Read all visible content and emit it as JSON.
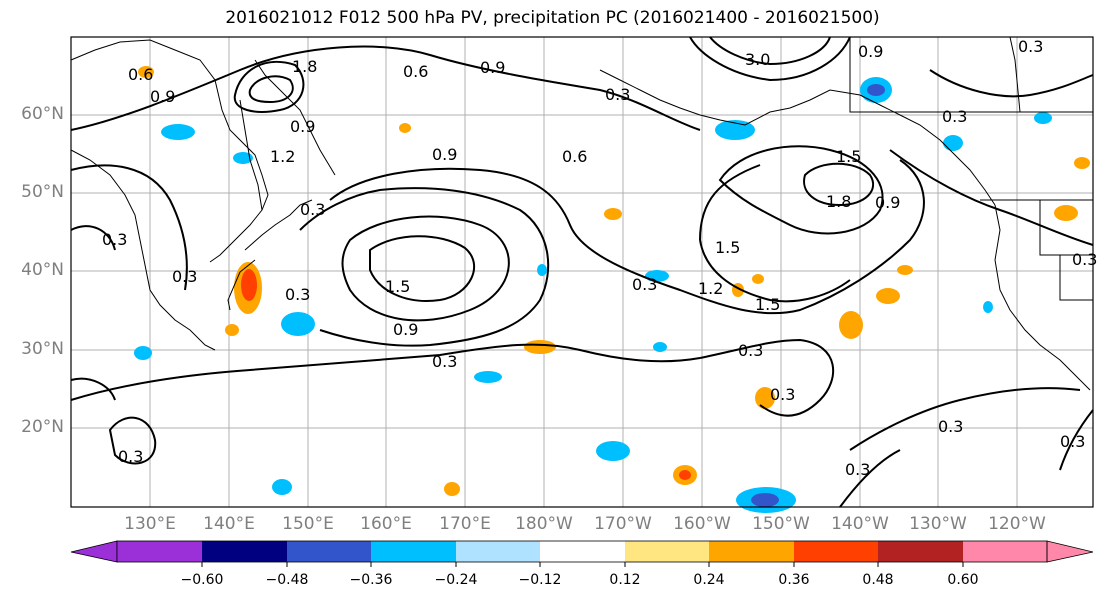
{
  "title": "2016021012 F012 500 hPa PV, precipitation PC (2016021400 - 2016021500)",
  "lat_labels": [
    "60°N",
    "50°N",
    "40°N",
    "30°N",
    "20°N"
  ],
  "lon_labels": [
    "130°E",
    "140°E",
    "150°E",
    "160°E",
    "170°E",
    "180°W",
    "170°W",
    "160°W",
    "150°W",
    "140°W",
    "130°W",
    "120°W"
  ],
  "colorbar": {
    "ticks": [
      "−0.60",
      "−0.48",
      "−0.36",
      "−0.24",
      "−0.12",
      "0.12",
      "0.24",
      "0.36",
      "0.48",
      "0.60"
    ],
    "colors": [
      "#9b30d9",
      "#000080",
      "#3355cc",
      "#00bfff",
      "#aee2ff",
      "#ffffff",
      "#ffe680",
      "#ffa500",
      "#ff4000",
      "#b22222",
      "#ff88aa"
    ]
  },
  "contour_labels": [
    "0.6",
    "0.9",
    "1.8",
    "0.6",
    "0.9",
    "0.3",
    "0.3",
    "3.0",
    "0.9",
    "0.3",
    "0.9",
    "0.9",
    "1.2",
    "1.5",
    "0.6",
    "0.3",
    "0.9",
    "1.5",
    "1.8",
    "0.3",
    "0.3",
    "1.5",
    "1.2",
    "0.3",
    "1.5",
    "0.9",
    "0.3",
    "0.3",
    "0.3",
    "0.3",
    "0.3",
    "0.3",
    "0.3",
    "0.3",
    "0.3"
  ],
  "colors": {
    "contour": "#000000",
    "grid": "#b0b0b0",
    "coast": "#000000",
    "tick_label": "#7f7f7f"
  }
}
